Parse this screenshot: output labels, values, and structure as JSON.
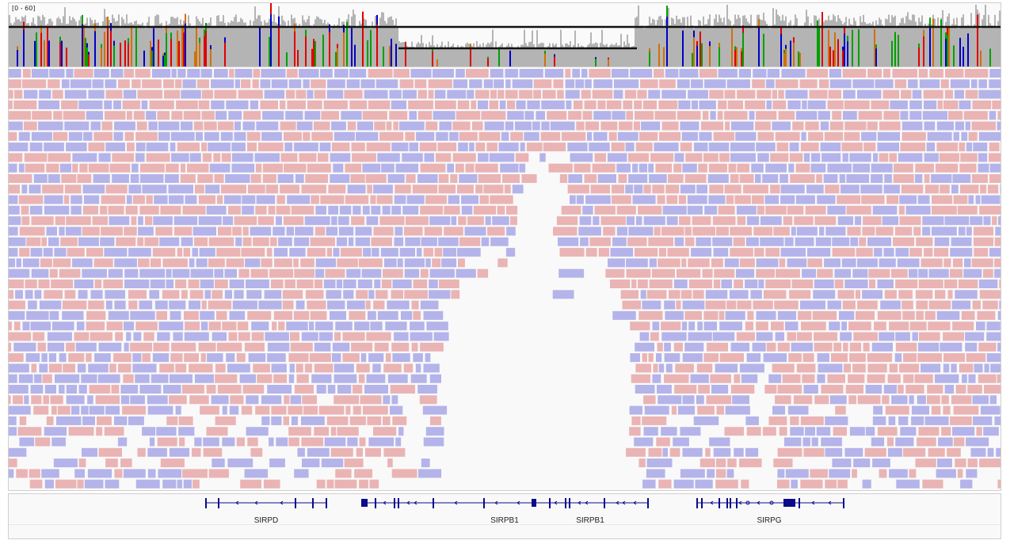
{
  "coverage_track": {
    "data_range_label": "[0 - 60]",
    "colors": {
      "coverage": "#b4b4b4",
      "mismatch_A": "#00a000",
      "mismatch_C": "#0000c8",
      "mismatch_G": "#d17105",
      "mismatch_T": "#e00000",
      "reference_line": "#111111"
    }
  },
  "alignment_track": {
    "colors": {
      "forward_read": "#eab4b4",
      "reverse_read": "#b4b4ea",
      "background": "#f9f9f9"
    }
  },
  "gene_track": {
    "feature_color": "#0a0a8c",
    "genes": [
      {
        "name": "SIRPD"
      },
      {
        "name": "SIRPB1"
      },
      {
        "name": "SIRPB1"
      },
      {
        "name": "SIRPG"
      }
    ]
  }
}
